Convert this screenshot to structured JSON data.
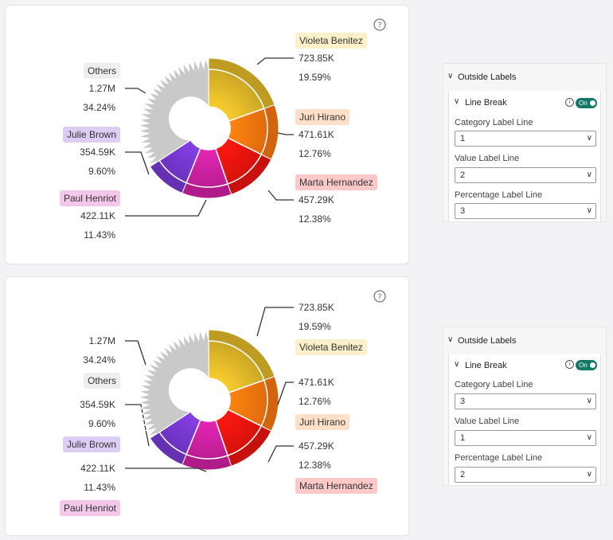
{
  "chart_data": [
    {
      "type": "pie",
      "variant": "donut",
      "slices": [
        {
          "category": "Violeta Benitez",
          "value": "723.85K",
          "percent": "19.59%",
          "value_num": 723.85,
          "color": "#e8be2a",
          "label_bg": "#fbf0c9"
        },
        {
          "category": "Juri Hirano",
          "value": "471.61K",
          "percent": "12.76%",
          "value_num": 471.61,
          "color": "#ff7a0f",
          "label_bg": "#fde0c7"
        },
        {
          "category": "Marta Hernandez",
          "value": "457.29K",
          "percent": "12.38%",
          "value_num": 457.29,
          "color": "#f4150f",
          "label_bg": "#fcc8c8"
        },
        {
          "category": "Paul Henriot",
          "value": "422.11K",
          "percent": "11.43%",
          "value_num": 422.11,
          "color": "#d522a8",
          "label_bg": "#f3c7e9"
        },
        {
          "category": "Julie Brown",
          "value": "354.59K",
          "percent": "9.60%",
          "value_num": 354.59,
          "color": "#7b3ad8",
          "label_bg": "#dccdf5"
        },
        {
          "category": "Others",
          "value": "1.27M",
          "percent": "34.24%",
          "value_num": 1265.0,
          "color": "#c9c9c9",
          "label_bg": "#eeeeee"
        }
      ],
      "line_order": [
        "category",
        "value",
        "percent"
      ]
    },
    {
      "type": "pie",
      "variant": "donut",
      "slices": [
        {
          "category": "Violeta Benitez",
          "value": "723.85K",
          "percent": "19.59%",
          "value_num": 723.85,
          "color": "#e8be2a",
          "label_bg": "#fbf0c9"
        },
        {
          "category": "Juri Hirano",
          "value": "471.61K",
          "percent": "12.76%",
          "value_num": 471.61,
          "color": "#ff7a0f",
          "label_bg": "#fde0c7"
        },
        {
          "category": "Marta Hernandez",
          "value": "457.29K",
          "percent": "12.38%",
          "value_num": 457.29,
          "color": "#f4150f",
          "label_bg": "#fcc8c8"
        },
        {
          "category": "Paul Henriot",
          "value": "422.11K",
          "percent": "11.43%",
          "value_num": 422.11,
          "color": "#d522a8",
          "label_bg": "#f3c7e9"
        },
        {
          "category": "Julie Brown",
          "value": "354.59K",
          "percent": "9.60%",
          "value_num": 354.59,
          "color": "#7b3ad8",
          "label_bg": "#dccdf5"
        },
        {
          "category": "Others",
          "value": "1.27M",
          "percent": "34.24%",
          "value_num": 1265.0,
          "color": "#c9c9c9",
          "label_bg": "#eeeeee"
        }
      ],
      "line_order": [
        "value",
        "percent",
        "category"
      ]
    }
  ],
  "panels": [
    {
      "title": "Outside Labels",
      "section": "Line Break",
      "toggle": "On",
      "info": "i",
      "fields": [
        {
          "label": "Category Label Line",
          "value": "1"
        },
        {
          "label": "Value Label Line",
          "value": "2"
        },
        {
          "label": "Percentage Label Line",
          "value": "3"
        }
      ]
    },
    {
      "title": "Outside Labels",
      "section": "Line Break",
      "toggle": "On",
      "info": "i",
      "fields": [
        {
          "label": "Category Label Line",
          "value": "3"
        },
        {
          "label": "Value Label Line",
          "value": "1"
        },
        {
          "label": "Percentage Label Line",
          "value": "2"
        }
      ]
    }
  ],
  "icons": {
    "help": "question-circle-icon",
    "chevron": "chevron-down-icon"
  }
}
